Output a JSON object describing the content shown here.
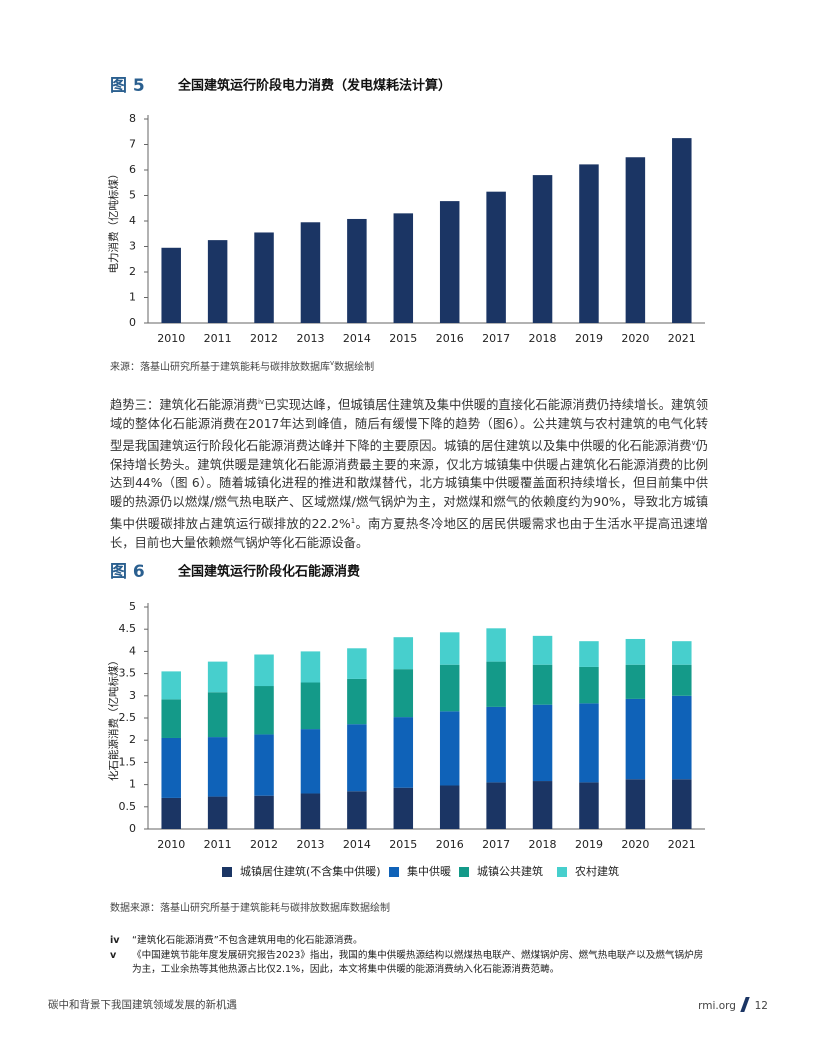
{
  "chart_data": [
    {
      "type": "bar",
      "figure_label": "图 5",
      "title": "全国建筑运行阶段电力消费（发电煤耗法计算）",
      "ylabel": "电力消费（亿吨标煤）",
      "categories": [
        "2010",
        "2011",
        "2012",
        "2013",
        "2014",
        "2015",
        "2016",
        "2017",
        "2018",
        "2019",
        "2020",
        "2021"
      ],
      "values": [
        2.95,
        3.25,
        3.55,
        3.95,
        4.08,
        4.3,
        4.78,
        5.15,
        5.8,
        6.22,
        6.5,
        7.25
      ],
      "color": "#1b3564",
      "ylim": [
        0,
        8
      ],
      "yticks": [
        0,
        1,
        2,
        3,
        4,
        5,
        6,
        7,
        8
      ],
      "source": "来源：落基山研究所基于建筑能耗与碳排放数据库",
      "source_sup": "v",
      "source_end": "数据绘制"
    },
    {
      "type": "stacked_bar",
      "figure_label": "图 6",
      "title": "全国建筑运行阶段化石能源消费",
      "ylabel": "化石能源消费（亿吨标煤）",
      "categories": [
        "2010",
        "2011",
        "2012",
        "2013",
        "2014",
        "2015",
        "2016",
        "2017",
        "2018",
        "2019",
        "2020",
        "2021"
      ],
      "series": [
        {
          "name": "城镇居住建筑(不含集中供暖)",
          "color": "#1b3564",
          "values": [
            0.7,
            0.73,
            0.75,
            0.8,
            0.85,
            0.93,
            0.98,
            1.05,
            1.08,
            1.05,
            1.12,
            1.12
          ]
        },
        {
          "name": "集中供暖",
          "color": "#0f62b8",
          "values": [
            1.35,
            1.34,
            1.38,
            1.45,
            1.51,
            1.59,
            1.67,
            1.7,
            1.72,
            1.78,
            1.81,
            1.88
          ]
        },
        {
          "name": "城镇公共建筑",
          "color": "#149a89",
          "values": [
            0.87,
            1.01,
            1.09,
            1.05,
            1.02,
            1.08,
            1.05,
            1.02,
            0.9,
            0.82,
            0.77,
            0.7
          ]
        },
        {
          "name": "农村建筑",
          "color": "#47cfcd",
          "values": [
            0.63,
            0.69,
            0.71,
            0.7,
            0.69,
            0.72,
            0.73,
            0.75,
            0.65,
            0.58,
            0.58,
            0.53
          ]
        }
      ],
      "ylim": [
        0,
        5
      ],
      "yticks": [
        0,
        0.5,
        1,
        1.5,
        2,
        2.5,
        3,
        3.5,
        4,
        4.5,
        5
      ],
      "legend": "bottom",
      "source": "数据来源：落基山研究所基于建筑能耗与碳排放数据库数据绘制"
    }
  ],
  "body": {
    "paragraph": [
      {
        "text": "趋势三：建筑化石能源消费"
      },
      {
        "sup": "iv"
      },
      {
        "text": "已实现达峰，但城镇居住建筑及集中供暖的直接化石能源消费仍持续增长。建筑领域的整体化石能源消费在2017年达到峰值，随后有缓慢下降的趋势（图6）。公共建筑与农村建筑的电气化转型是我国建筑运行阶段化石能源消费达峰并下降的主要原因。城镇的居住建筑以及集中供暖的化石能源消费"
      },
      {
        "sup": "v"
      },
      {
        "text": "仍保持增长势头。建筑供暖是建筑化石能源消费最主要的来源，仅北方城镇集中供暖占建筑化石能源消费的比例达到44%（图 6）。随着城镇化进程的推进和散煤替代，北方城镇集中供暖覆盖面积持续增长，但目前集中供暖的热源仍以燃煤/燃气热电联产、区域燃煤/燃气锅炉为主，对燃煤和燃气的依赖度约为90%，导致北方城镇集中供暖碳排放占建筑运行碳排放的22.2%"
      },
      {
        "sup": "1"
      },
      {
        "text": "。南方夏热冬冷地区的居民供暖需求也由于生活水平提高迅速增长，目前也大量依赖燃气锅炉等化石能源设备。"
      }
    ]
  },
  "footnotes": [
    {
      "mark": "iv",
      "text": "“建筑化石能源消费”不包含建筑用电的化石能源消费。"
    },
    {
      "mark": "v",
      "text": "《中国建筑节能年度发展研究报告2023》指出，我国的集中供暖热源结构以燃煤热电联产、燃煤锅炉房、燃气热电联产以及燃气锅炉房为主，工业余热等其他热源占比仅2.1%，因此，本文将集中供暖的能源消费纳入化石能源消费范畴。"
    }
  ],
  "footer": {
    "left": "碳中和背景下我国建筑领域发展的新机遇",
    "site": "rmi.org",
    "page": "12"
  }
}
